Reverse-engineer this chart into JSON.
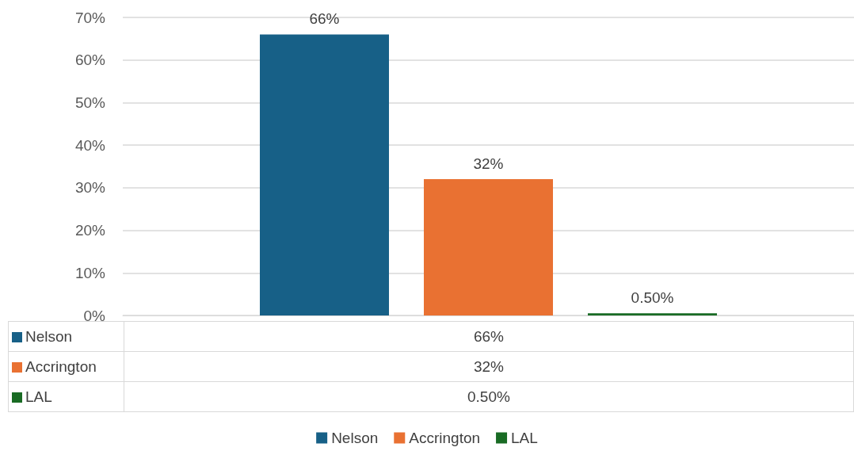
{
  "chart_data": {
    "type": "bar",
    "categories": [
      null
    ],
    "series": [
      {
        "name": "Nelson",
        "color": "#176087",
        "values": [
          66
        ],
        "value_labels": [
          "66%"
        ]
      },
      {
        "name": "Accrington",
        "color": "#e97132",
        "values": [
          32
        ],
        "value_labels": [
          "32%"
        ]
      },
      {
        "name": "LAL",
        "color": "#196b24",
        "values": [
          0.5
        ],
        "value_labels": [
          "0.50%"
        ]
      }
    ],
    "ylim": [
      0,
      70
    ],
    "yticks": [
      {
        "value": 0,
        "label": "0%"
      },
      {
        "value": 10,
        "label": "10%"
      },
      {
        "value": 20,
        "label": "20%"
      },
      {
        "value": 30,
        "label": "30%"
      },
      {
        "value": 40,
        "label": "40%"
      },
      {
        "value": 50,
        "label": "50%"
      },
      {
        "value": 60,
        "label": "60%"
      },
      {
        "value": 70,
        "label": "70%"
      }
    ],
    "grid": "y",
    "legend": "bottom"
  }
}
